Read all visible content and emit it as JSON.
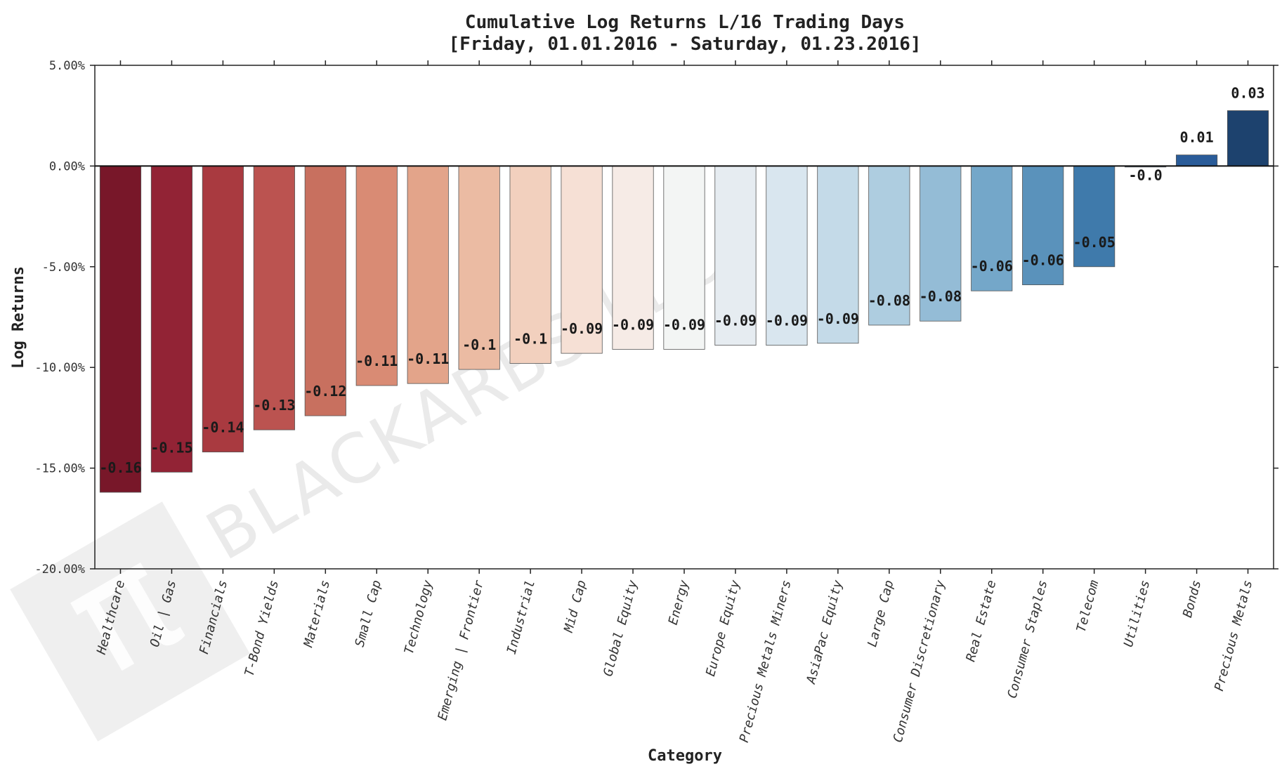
{
  "chart_data": {
    "type": "bar",
    "title": "Cumulative Log Returns L/16 Trading Days",
    "subtitle": "[Friday, 01.01.2016 - Saturday, 01.23.2016]",
    "xlabel": "Category",
    "ylabel": "Log Returns",
    "ylim": [
      -0.2,
      0.05
    ],
    "yticks": [
      0.05,
      0.0,
      -0.05,
      -0.1,
      -0.15,
      -0.2
    ],
    "ytick_labels": [
      "5.00%",
      "0.00%",
      "-5.00%",
      "-10.00%",
      "-15.00%",
      "-20.00%"
    ],
    "grid": false,
    "categories": [
      "Healthcare",
      "Oil | Gas",
      "Financials",
      "T-Bond Yields",
      "Materials",
      "Small Cap",
      "Technology",
      "Emerging | Frontier",
      "Industrial",
      "Mid Cap",
      "Global Equity",
      "Energy",
      "Europe Equity",
      "Precious Metals Miners",
      "AsiaPac Equity",
      "Large Cap",
      "Consumer Discretionary",
      "Real Estate",
      "Consumer Staples",
      "Telecom",
      "Utilities",
      "Bonds",
      "Precious Metals"
    ],
    "values": [
      -0.162,
      -0.152,
      -0.142,
      -0.131,
      -0.124,
      -0.109,
      -0.108,
      -0.101,
      -0.098,
      -0.093,
      -0.091,
      -0.091,
      -0.089,
      -0.089,
      -0.088,
      -0.079,
      -0.077,
      -0.062,
      -0.059,
      -0.05,
      -0.0005,
      0.0055,
      0.0275
    ],
    "value_labels": [
      "-0.16",
      "-0.15",
      "-0.14",
      "-0.13",
      "-0.12",
      "-0.11",
      "-0.11",
      "-0.1",
      "-0.1",
      "-0.09",
      "-0.09",
      "-0.09",
      "-0.09",
      "-0.09",
      "-0.09",
      "-0.08",
      "-0.08",
      "-0.06",
      "-0.06",
      "-0.05",
      "-0.0",
      "0.01",
      "0.03"
    ],
    "colors": [
      "#781729",
      "#922335",
      "#a93a40",
      "#bb5350",
      "#c8705f",
      "#d98b74",
      "#e3a48a",
      "#ebbba3",
      "#f2d0be",
      "#f6e0d5",
      "#f6ebe6",
      "#f3f5f4",
      "#e6ecf1",
      "#d9e6ef",
      "#c4dae8",
      "#aecde0",
      "#94bcd6",
      "#74a7c9",
      "#5a92bb",
      "#3f7aab",
      "#2c6399",
      "#2a5c99",
      "#1d426e"
    ],
    "bar_edge_color": "#555555"
  },
  "watermark": {
    "text": "BLACKARBS LLC",
    "symbol": "π"
  }
}
